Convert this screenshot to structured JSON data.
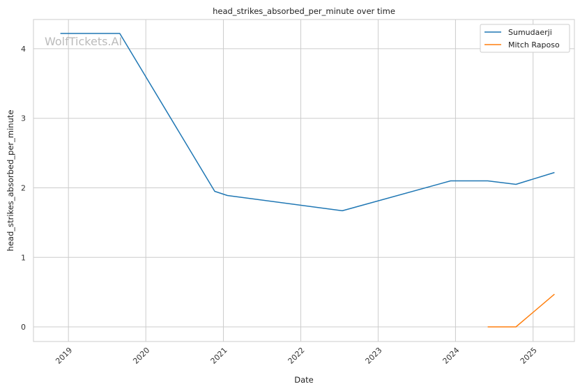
{
  "chart_data": {
    "type": "line",
    "title": "head_strikes_absorbed_per_minute over time",
    "xlabel": "Date",
    "ylabel": "head_strikes_absorbed_per_minute",
    "watermark": "WolfTickets.AI",
    "x_axis_type": "date",
    "xlim": [
      "2018-07-20",
      "2025-07-15"
    ],
    "ylim": [
      -0.21,
      4.42
    ],
    "x_ticks": [
      "2019-01-01",
      "2020-01-01",
      "2021-01-01",
      "2022-01-01",
      "2023-01-01",
      "2024-01-01",
      "2025-01-01"
    ],
    "x_tick_labels": [
      "2019",
      "2020",
      "2021",
      "2022",
      "2023",
      "2024",
      "2025"
    ],
    "y_ticks": [
      0,
      1,
      2,
      3,
      4
    ],
    "y_tick_labels": [
      "0",
      "1",
      "2",
      "3",
      "4"
    ],
    "grid": true,
    "legend_position": "top-right",
    "series": [
      {
        "name": "Sumudaerji",
        "color": "#1f77b4",
        "points": [
          {
            "x": "2018-11-24",
            "y": 4.22
          },
          {
            "x": "2019-08-31",
            "y": 4.22
          },
          {
            "x": "2020-11-21",
            "y": 1.95
          },
          {
            "x": "2021-01-20",
            "y": 1.89
          },
          {
            "x": "2022-07-16",
            "y": 1.67
          },
          {
            "x": "2023-12-09",
            "y": 2.1
          },
          {
            "x": "2024-06-01",
            "y": 2.1
          },
          {
            "x": "2024-10-12",
            "y": 2.05
          },
          {
            "x": "2025-04-12",
            "y": 2.22
          }
        ]
      },
      {
        "name": "Mitch Raposo",
        "color": "#ff7f0e",
        "points": [
          {
            "x": "2024-06-01",
            "y": 0
          },
          {
            "x": "2024-10-12",
            "y": 0
          },
          {
            "x": "2025-04-12",
            "y": 0.47
          }
        ]
      }
    ]
  }
}
